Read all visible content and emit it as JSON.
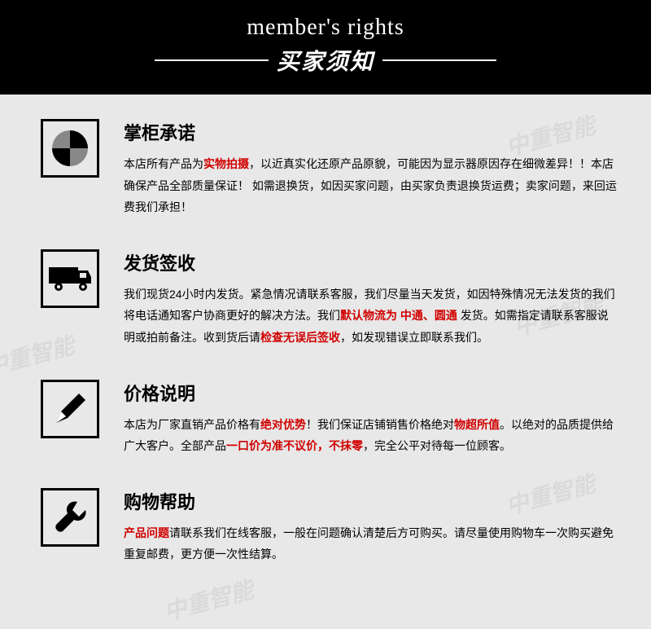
{
  "header": {
    "en": "member's rights",
    "cn": "买家须知"
  },
  "sections": [
    {
      "icon": "pie",
      "title": "掌柜承诺",
      "parts": [
        {
          "t": "本店所有产品为"
        },
        {
          "t": "实物拍摄",
          "r": true
        },
        {
          "t": "，以近真实化还原产品原貌，可能因为显示器原因存在细微差异！！本店确保产品全部质量保证！\n如需退换货，如因买家问题，由买家负责退换货运费；卖家问题，来回运费我们承担！"
        }
      ]
    },
    {
      "icon": "van",
      "title": "发货签收",
      "parts": [
        {
          "t": "我们现货24小时内发货。紧急情况请联系客服，我们尽量当天发货，如因特殊情况无法发货的我们将电话通知客户协商更好的解决方法。我们"
        },
        {
          "t": "默认物流为 中通、圆通",
          "r": true
        },
        {
          "t": " 发货。如需指定请联系客服说明或拍前备注。收到货后请"
        },
        {
          "t": "检查无误后签收",
          "r": true
        },
        {
          "t": "，如发现错误立即联系我们。"
        }
      ]
    },
    {
      "icon": "pen",
      "title": "价格说明",
      "parts": [
        {
          "t": "本店为厂家直销产品价格有"
        },
        {
          "t": "绝对优势",
          "r": true
        },
        {
          "t": "！我们保证店铺销售价格绝对"
        },
        {
          "t": "物超所值",
          "r": true
        },
        {
          "t": "。以绝对的品质提供给广大客户。全部产品"
        },
        {
          "t": "一口价为准不议价，不抹零",
          "r": true
        },
        {
          "t": "，完全公平对待每一位顾客。"
        }
      ]
    },
    {
      "icon": "wrench",
      "title": "购物帮助",
      "parts": [
        {
          "t": "产品问题",
          "r": true
        },
        {
          "t": "请联系我们在线客服，一般在问题确认清楚后方可购买。请尽量使用购物车一次购买避免重复邮费，更方便一次性结算。"
        }
      ]
    }
  ],
  "watermark_text": "中重智能",
  "colors": {
    "header_bg": "#000000",
    "header_fg": "#ffffff",
    "body_bg": "#e8e8e8",
    "text": "#000000",
    "highlight": "#d10000",
    "border": "#000000"
  }
}
